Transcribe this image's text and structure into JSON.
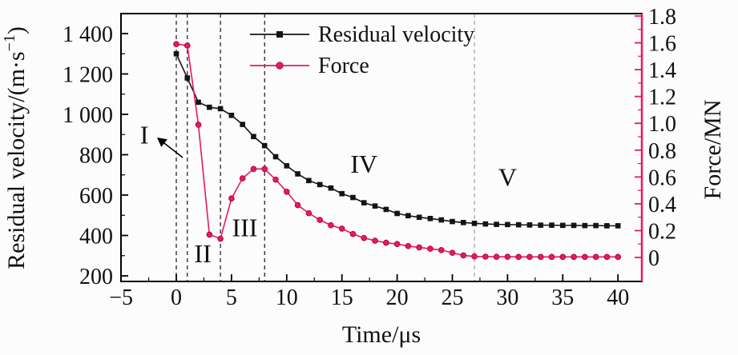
{
  "figure": {
    "background": "#fcfcfc",
    "colors": {
      "black_series": "#141414",
      "pink_series": "#e8185f",
      "grey_boundary": "#9f9f9f",
      "frame": "#000000"
    },
    "legend": {
      "items": [
        {
          "label": "Residual velocity",
          "series": "residual_velocity",
          "marker": "square",
          "color": "#141414"
        },
        {
          "label": "Force",
          "series": "force",
          "marker": "circle",
          "color": "#e8185f"
        }
      ]
    }
  },
  "chart_data": {
    "type": "line",
    "title": "",
    "xlabel": "Time/μs",
    "ylabel_left": {
      "pre": "Residual velocity/(m·s",
      "sup": "−1",
      "post": ")"
    },
    "ylabel_right": "Force/MN",
    "axes": {
      "x": {
        "min": -5,
        "max": 42.2,
        "major": [
          -5,
          0,
          5,
          10,
          15,
          20,
          25,
          30,
          35,
          40
        ],
        "tick_labels": [
          "−5",
          "0",
          "5",
          "10",
          "15",
          "20",
          "25",
          "30",
          "35",
          "40"
        ],
        "minor_step": 2.5
      },
      "left": {
        "min": 200,
        "max": 1400,
        "major": [
          200,
          400,
          600,
          800,
          1000,
          1200,
          1400
        ],
        "tick_labels": [
          "200",
          "400",
          "600",
          "800",
          "1 000",
          "1 200",
          "1 400"
        ],
        "minor_step": 100
      },
      "right": {
        "min": 0,
        "max": 1.8,
        "major": [
          0,
          0.2,
          0.4,
          0.6,
          0.8,
          1.0,
          1.2,
          1.4,
          1.6,
          1.8
        ],
        "tick_labels": [
          "0",
          "0.2",
          "0.4",
          "0.6",
          "0.8",
          "1.0",
          "1.2",
          "1.4",
          "1.6",
          "1.8"
        ],
        "minor_step": 0.1
      }
    },
    "x": [
      0,
      1,
      2,
      3,
      4,
      5,
      6,
      7,
      8,
      9,
      10,
      11,
      12,
      13,
      14,
      15,
      16,
      17,
      18,
      19,
      20,
      21,
      22,
      23,
      24,
      25,
      26,
      27,
      28,
      29,
      30,
      31,
      32,
      33,
      34,
      35,
      36,
      37,
      38,
      39,
      40
    ],
    "series": [
      {
        "name": "Residual velocity",
        "axis": "left",
        "color": "#141414",
        "marker": "square",
        "values": [
          1300,
          1180,
          1060,
          1035,
          1028,
          995,
          950,
          890,
          845,
          790,
          745,
          705,
          672,
          652,
          635,
          607,
          588,
          562,
          546,
          529,
          509,
          498,
          490,
          484,
          477,
          469,
          464,
          460,
          457,
          455,
          454,
          453,
          452,
          451,
          451,
          450,
          450,
          449,
          449,
          448,
          448
        ]
      },
      {
        "name": "Force",
        "axis": "right",
        "color": "#e8185f",
        "marker": "circle",
        "values": [
          1.59,
          1.58,
          0.99,
          0.17,
          0.14,
          0.44,
          0.59,
          0.66,
          0.66,
          0.58,
          0.49,
          0.39,
          0.33,
          0.28,
          0.24,
          0.215,
          0.175,
          0.145,
          0.125,
          0.11,
          0.1,
          0.085,
          0.075,
          0.065,
          0.055,
          0.035,
          0.015,
          0.008,
          0.006,
          0.005,
          0.005,
          0.004,
          0.004,
          0.004,
          0.004,
          0.004,
          0.004,
          0.004,
          0.004,
          0.004,
          0.004
        ]
      }
    ],
    "vlines": [
      {
        "t": 0,
        "color": "#141414"
      },
      {
        "t": 1,
        "color": "#141414"
      },
      {
        "t": 4,
        "color": "#141414"
      },
      {
        "t": 8,
        "color": "#141414"
      },
      {
        "t": 27,
        "color": "#9f9f9f"
      }
    ],
    "regions": [
      {
        "label": "I",
        "t": -2.9,
        "v": 900
      },
      {
        "label": "II",
        "t": 2.4,
        "v": 310
      },
      {
        "label": "III",
        "t": 6.2,
        "v": 440
      },
      {
        "label": "IV",
        "t": 17.0,
        "v": 755
      },
      {
        "label": "V",
        "t": 30.0,
        "v": 690
      }
    ],
    "arrow": {
      "tail": {
        "t": 0.58,
        "v": 786
      },
      "head": {
        "t": -1.74,
        "v": 885
      }
    }
  }
}
